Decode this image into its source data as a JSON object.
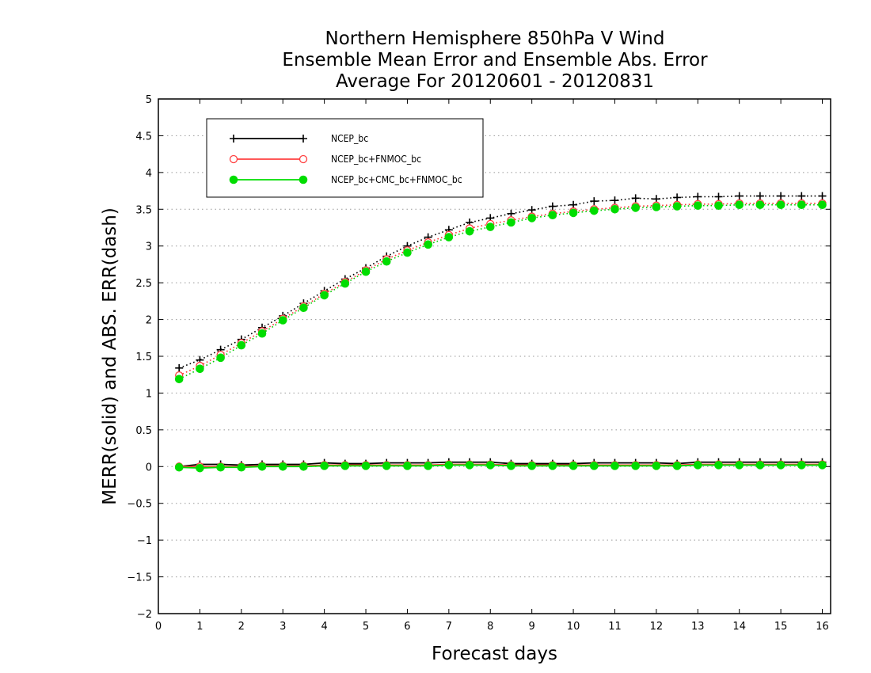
{
  "chart_data": {
    "type": "line",
    "title": [
      "Northern Hemisphere 850hPa V Wind",
      "Ensemble Mean Error and Ensemble Abs. Error",
      "Average For 20120601 - 20120831"
    ],
    "xlabel": "Forecast days",
    "ylabel": "MERR(solid) and ABS. ERR(dash)",
    "xlim": [
      0,
      16.2
    ],
    "ylim": [
      -2,
      5
    ],
    "xticks": [
      0,
      1,
      2,
      3,
      4,
      5,
      6,
      7,
      8,
      9,
      10,
      11,
      12,
      13,
      14,
      15,
      16
    ],
    "xtick_labels": [
      "0",
      "1",
      "2",
      "3",
      "4",
      "5",
      "6",
      "7",
      "8",
      "9",
      "10",
      "11",
      "12",
      "13",
      "14",
      "15",
      "16"
    ],
    "yticks": [
      -2,
      -1.5,
      -1,
      -0.5,
      0,
      0.5,
      1,
      1.5,
      2,
      2.5,
      3,
      3.5,
      4,
      4.5,
      5
    ],
    "ytick_labels": [
      "−2",
      "−1.5",
      "−1",
      "−0.5",
      "0",
      "0.5",
      "1",
      "1.5",
      "2",
      "2.5",
      "3",
      "3.5",
      "4",
      "4.5",
      "5"
    ],
    "grid": "horizontal dotted",
    "legend_position": "top-left",
    "x": [
      0.5,
      1,
      1.5,
      2,
      2.5,
      3,
      3.5,
      4,
      4.5,
      5,
      5.5,
      6,
      6.5,
      7,
      7.5,
      8,
      8.5,
      9,
      9.5,
      10,
      10.5,
      11,
      11.5,
      12,
      12.5,
      13,
      13.5,
      14,
      14.5,
      15,
      15.5,
      16
    ],
    "series": [
      {
        "name": "NCEP_bc",
        "color": "#000000",
        "marker": "plus",
        "abs_err": [
          1.34,
          1.45,
          1.59,
          1.73,
          1.89,
          2.05,
          2.22,
          2.39,
          2.55,
          2.7,
          2.86,
          3.0,
          3.12,
          3.22,
          3.32,
          3.38,
          3.44,
          3.49,
          3.54,
          3.56,
          3.61,
          3.62,
          3.65,
          3.64,
          3.66,
          3.67,
          3.67,
          3.68,
          3.68,
          3.68,
          3.68,
          3.68
        ],
        "mean_err": [
          0.0,
          0.03,
          0.03,
          0.02,
          0.03,
          0.03,
          0.03,
          0.05,
          0.04,
          0.04,
          0.05,
          0.05,
          0.05,
          0.06,
          0.06,
          0.06,
          0.04,
          0.04,
          0.04,
          0.04,
          0.05,
          0.05,
          0.05,
          0.05,
          0.04,
          0.06,
          0.06,
          0.06,
          0.06,
          0.06,
          0.06,
          0.06
        ]
      },
      {
        "name": "NCEP_bc+FNMOC_bc",
        "color": "#ff4040",
        "marker": "open-circle",
        "abs_err": [
          1.24,
          1.37,
          1.52,
          1.68,
          1.84,
          2.01,
          2.18,
          2.35,
          2.51,
          2.67,
          2.82,
          2.94,
          3.05,
          3.15,
          3.24,
          3.3,
          3.35,
          3.4,
          3.44,
          3.47,
          3.5,
          3.52,
          3.54,
          3.55,
          3.56,
          3.57,
          3.57,
          3.58,
          3.58,
          3.58,
          3.58,
          3.58
        ],
        "mean_err": [
          0.0,
          0.0,
          0.0,
          0.0,
          0.01,
          0.01,
          0.01,
          0.02,
          0.02,
          0.02,
          0.02,
          0.02,
          0.02,
          0.03,
          0.03,
          0.03,
          0.02,
          0.02,
          0.02,
          0.02,
          0.02,
          0.02,
          0.02,
          0.02,
          0.02,
          0.03,
          0.03,
          0.03,
          0.03,
          0.03,
          0.03,
          0.03
        ]
      },
      {
        "name": "NCEP_bc+CMC_bc+FNMOC_bc",
        "color": "#00dd00",
        "marker": "filled-circle",
        "abs_err": [
          1.19,
          1.33,
          1.48,
          1.65,
          1.81,
          1.99,
          2.16,
          2.33,
          2.49,
          2.65,
          2.79,
          2.91,
          3.02,
          3.12,
          3.2,
          3.26,
          3.32,
          3.38,
          3.42,
          3.45,
          3.48,
          3.5,
          3.52,
          3.53,
          3.54,
          3.55,
          3.55,
          3.56,
          3.56,
          3.56,
          3.56,
          3.56
        ],
        "mean_err": [
          -0.01,
          -0.02,
          -0.01,
          -0.01,
          0.0,
          0.0,
          0.0,
          0.01,
          0.01,
          0.01,
          0.01,
          0.01,
          0.01,
          0.02,
          0.02,
          0.02,
          0.01,
          0.01,
          0.01,
          0.01,
          0.01,
          0.01,
          0.01,
          0.01,
          0.01,
          0.02,
          0.02,
          0.02,
          0.02,
          0.02,
          0.02,
          0.02
        ]
      }
    ]
  }
}
